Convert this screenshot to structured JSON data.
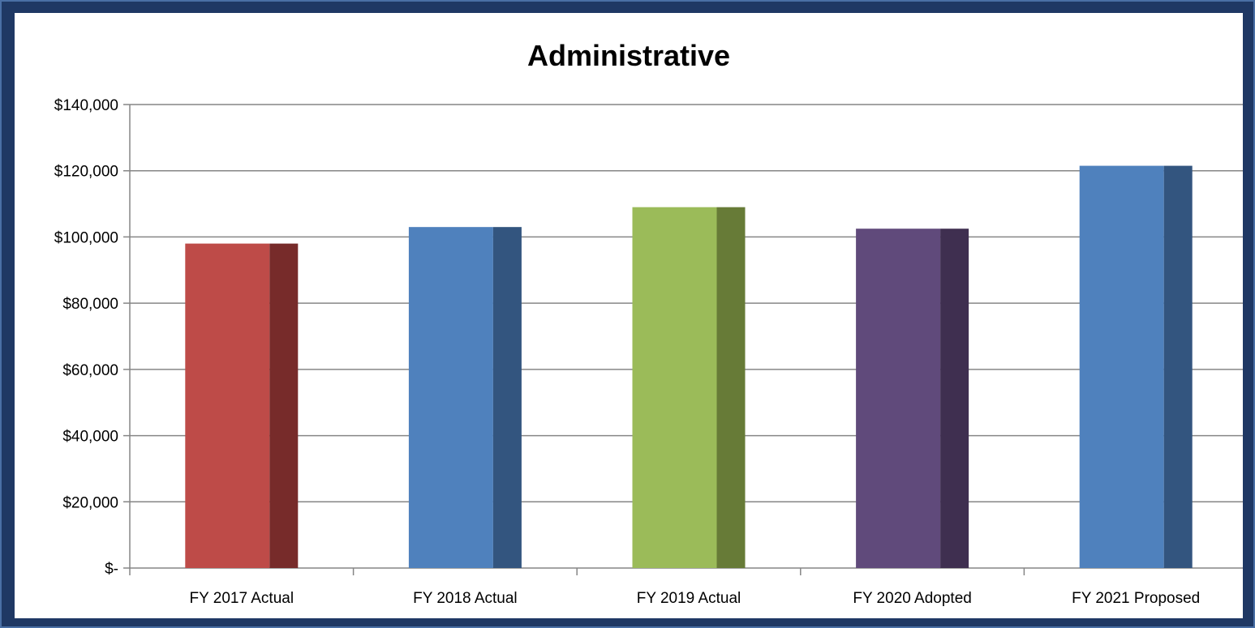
{
  "chart_data": {
    "type": "bar",
    "title": "Administrative",
    "categories": [
      "FY 2017 Actual",
      "FY 2018 Actual",
      "FY 2019 Actual",
      "FY 2020 Adopted",
      "FY 2021 Proposed"
    ],
    "values": [
      98000,
      103000,
      109000,
      102500,
      121500
    ],
    "colors": [
      "#be4b48",
      "#4f81bd",
      "#9bbb59",
      "#604a7b",
      "#4f81bd"
    ],
    "side_colors": [
      "#772b2a",
      "#33557f",
      "#677b37",
      "#3f2f50",
      "#33557f"
    ],
    "ylim": [
      0,
      140000
    ],
    "yticks": [
      0,
      20000,
      40000,
      60000,
      80000,
      100000,
      120000,
      140000
    ],
    "ytick_labels": [
      "$-",
      "$20,000",
      "$40,000",
      "$60,000",
      "$80,000",
      "$100,000",
      "$120,000",
      "$140,000"
    ],
    "xlabel": "",
    "ylabel": "",
    "grid": true,
    "legend": "none"
  }
}
